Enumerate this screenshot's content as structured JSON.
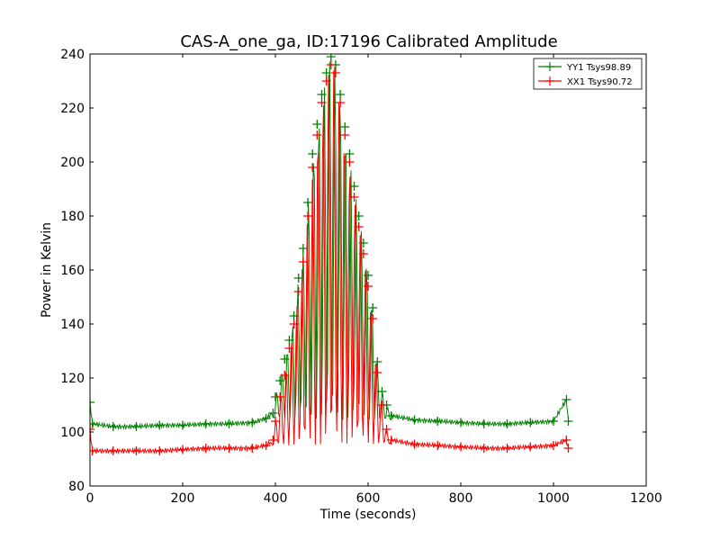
{
  "chart_data": {
    "type": "line",
    "title": "CAS-A_one_ga, ID:17196 Calibrated Amplitude",
    "xlabel": "Time (seconds)",
    "ylabel": "Power in Kelvin",
    "xlim": [
      0,
      1200
    ],
    "ylim": [
      80,
      240
    ],
    "xticks": [
      0,
      200,
      400,
      600,
      800,
      1000,
      1200
    ],
    "yticks": [
      80,
      100,
      120,
      140,
      160,
      180,
      200,
      220,
      240
    ],
    "xtick_labels": [
      "0",
      "200",
      "400",
      "600",
      "800",
      "1000",
      "1200"
    ],
    "ytick_labels": [
      "80",
      "100",
      "120",
      "140",
      "160",
      "180",
      "200",
      "220",
      "240"
    ],
    "legend_position": "top-right",
    "grid": false,
    "marker": "+",
    "series": [
      {
        "name": "YY1 Tsys98.89",
        "color": "#008000",
        "points": [
          [
            0,
            111
          ],
          [
            5,
            103
          ],
          [
            50,
            102
          ],
          [
            100,
            102
          ],
          [
            150,
            102.5
          ],
          [
            200,
            102.5
          ],
          [
            250,
            103
          ],
          [
            300,
            103
          ],
          [
            350,
            103.5
          ],
          [
            380,
            105
          ],
          [
            395,
            107
          ],
          [
            400,
            113
          ],
          [
            410,
            119
          ],
          [
            420,
            127
          ],
          [
            430,
            134
          ],
          [
            440,
            143
          ],
          [
            450,
            157
          ],
          [
            460,
            168
          ],
          [
            470,
            185
          ],
          [
            480,
            203
          ],
          [
            490,
            214
          ],
          [
            500,
            225
          ],
          [
            510,
            233
          ],
          [
            520,
            239
          ],
          [
            530,
            236
          ],
          [
            540,
            225
          ],
          [
            550,
            213
          ],
          [
            560,
            203
          ],
          [
            570,
            191
          ],
          [
            580,
            180
          ],
          [
            590,
            170
          ],
          [
            600,
            158
          ],
          [
            610,
            146
          ],
          [
            620,
            126
          ],
          [
            630,
            115
          ],
          [
            640,
            110
          ],
          [
            650,
            106
          ],
          [
            700,
            104.5
          ],
          [
            750,
            104
          ],
          [
            800,
            103.5
          ],
          [
            850,
            103
          ],
          [
            900,
            103
          ],
          [
            950,
            103.5
          ],
          [
            1000,
            104
          ],
          [
            1028,
            112
          ],
          [
            1032,
            104
          ]
        ]
      },
      {
        "name": "XX1 Tsys90.72",
        "color": "#ff0000",
        "points": [
          [
            0,
            101
          ],
          [
            5,
            93
          ],
          [
            50,
            93
          ],
          [
            100,
            93
          ],
          [
            150,
            93
          ],
          [
            200,
            93.5
          ],
          [
            250,
            94
          ],
          [
            300,
            94
          ],
          [
            350,
            94
          ],
          [
            380,
            95
          ],
          [
            395,
            97
          ],
          [
            400,
            104
          ],
          [
            410,
            113
          ],
          [
            420,
            121
          ],
          [
            430,
            131
          ],
          [
            440,
            140
          ],
          [
            450,
            152
          ],
          [
            460,
            163
          ],
          [
            470,
            180
          ],
          [
            480,
            198
          ],
          [
            490,
            210
          ],
          [
            500,
            222
          ],
          [
            510,
            230
          ],
          [
            520,
            236
          ],
          [
            530,
            233
          ],
          [
            540,
            222
          ],
          [
            550,
            210
          ],
          [
            560,
            200
          ],
          [
            570,
            187
          ],
          [
            580,
            176
          ],
          [
            590,
            166
          ],
          [
            600,
            154
          ],
          [
            610,
            142
          ],
          [
            620,
            122
          ],
          [
            630,
            110
          ],
          [
            640,
            101
          ],
          [
            650,
            97
          ],
          [
            700,
            95.5
          ],
          [
            750,
            95
          ],
          [
            800,
            94.5
          ],
          [
            850,
            94
          ],
          [
            900,
            94
          ],
          [
            950,
            94.5
          ],
          [
            1000,
            95
          ],
          [
            1028,
            97
          ],
          [
            1032,
            94
          ]
        ]
      }
    ]
  }
}
